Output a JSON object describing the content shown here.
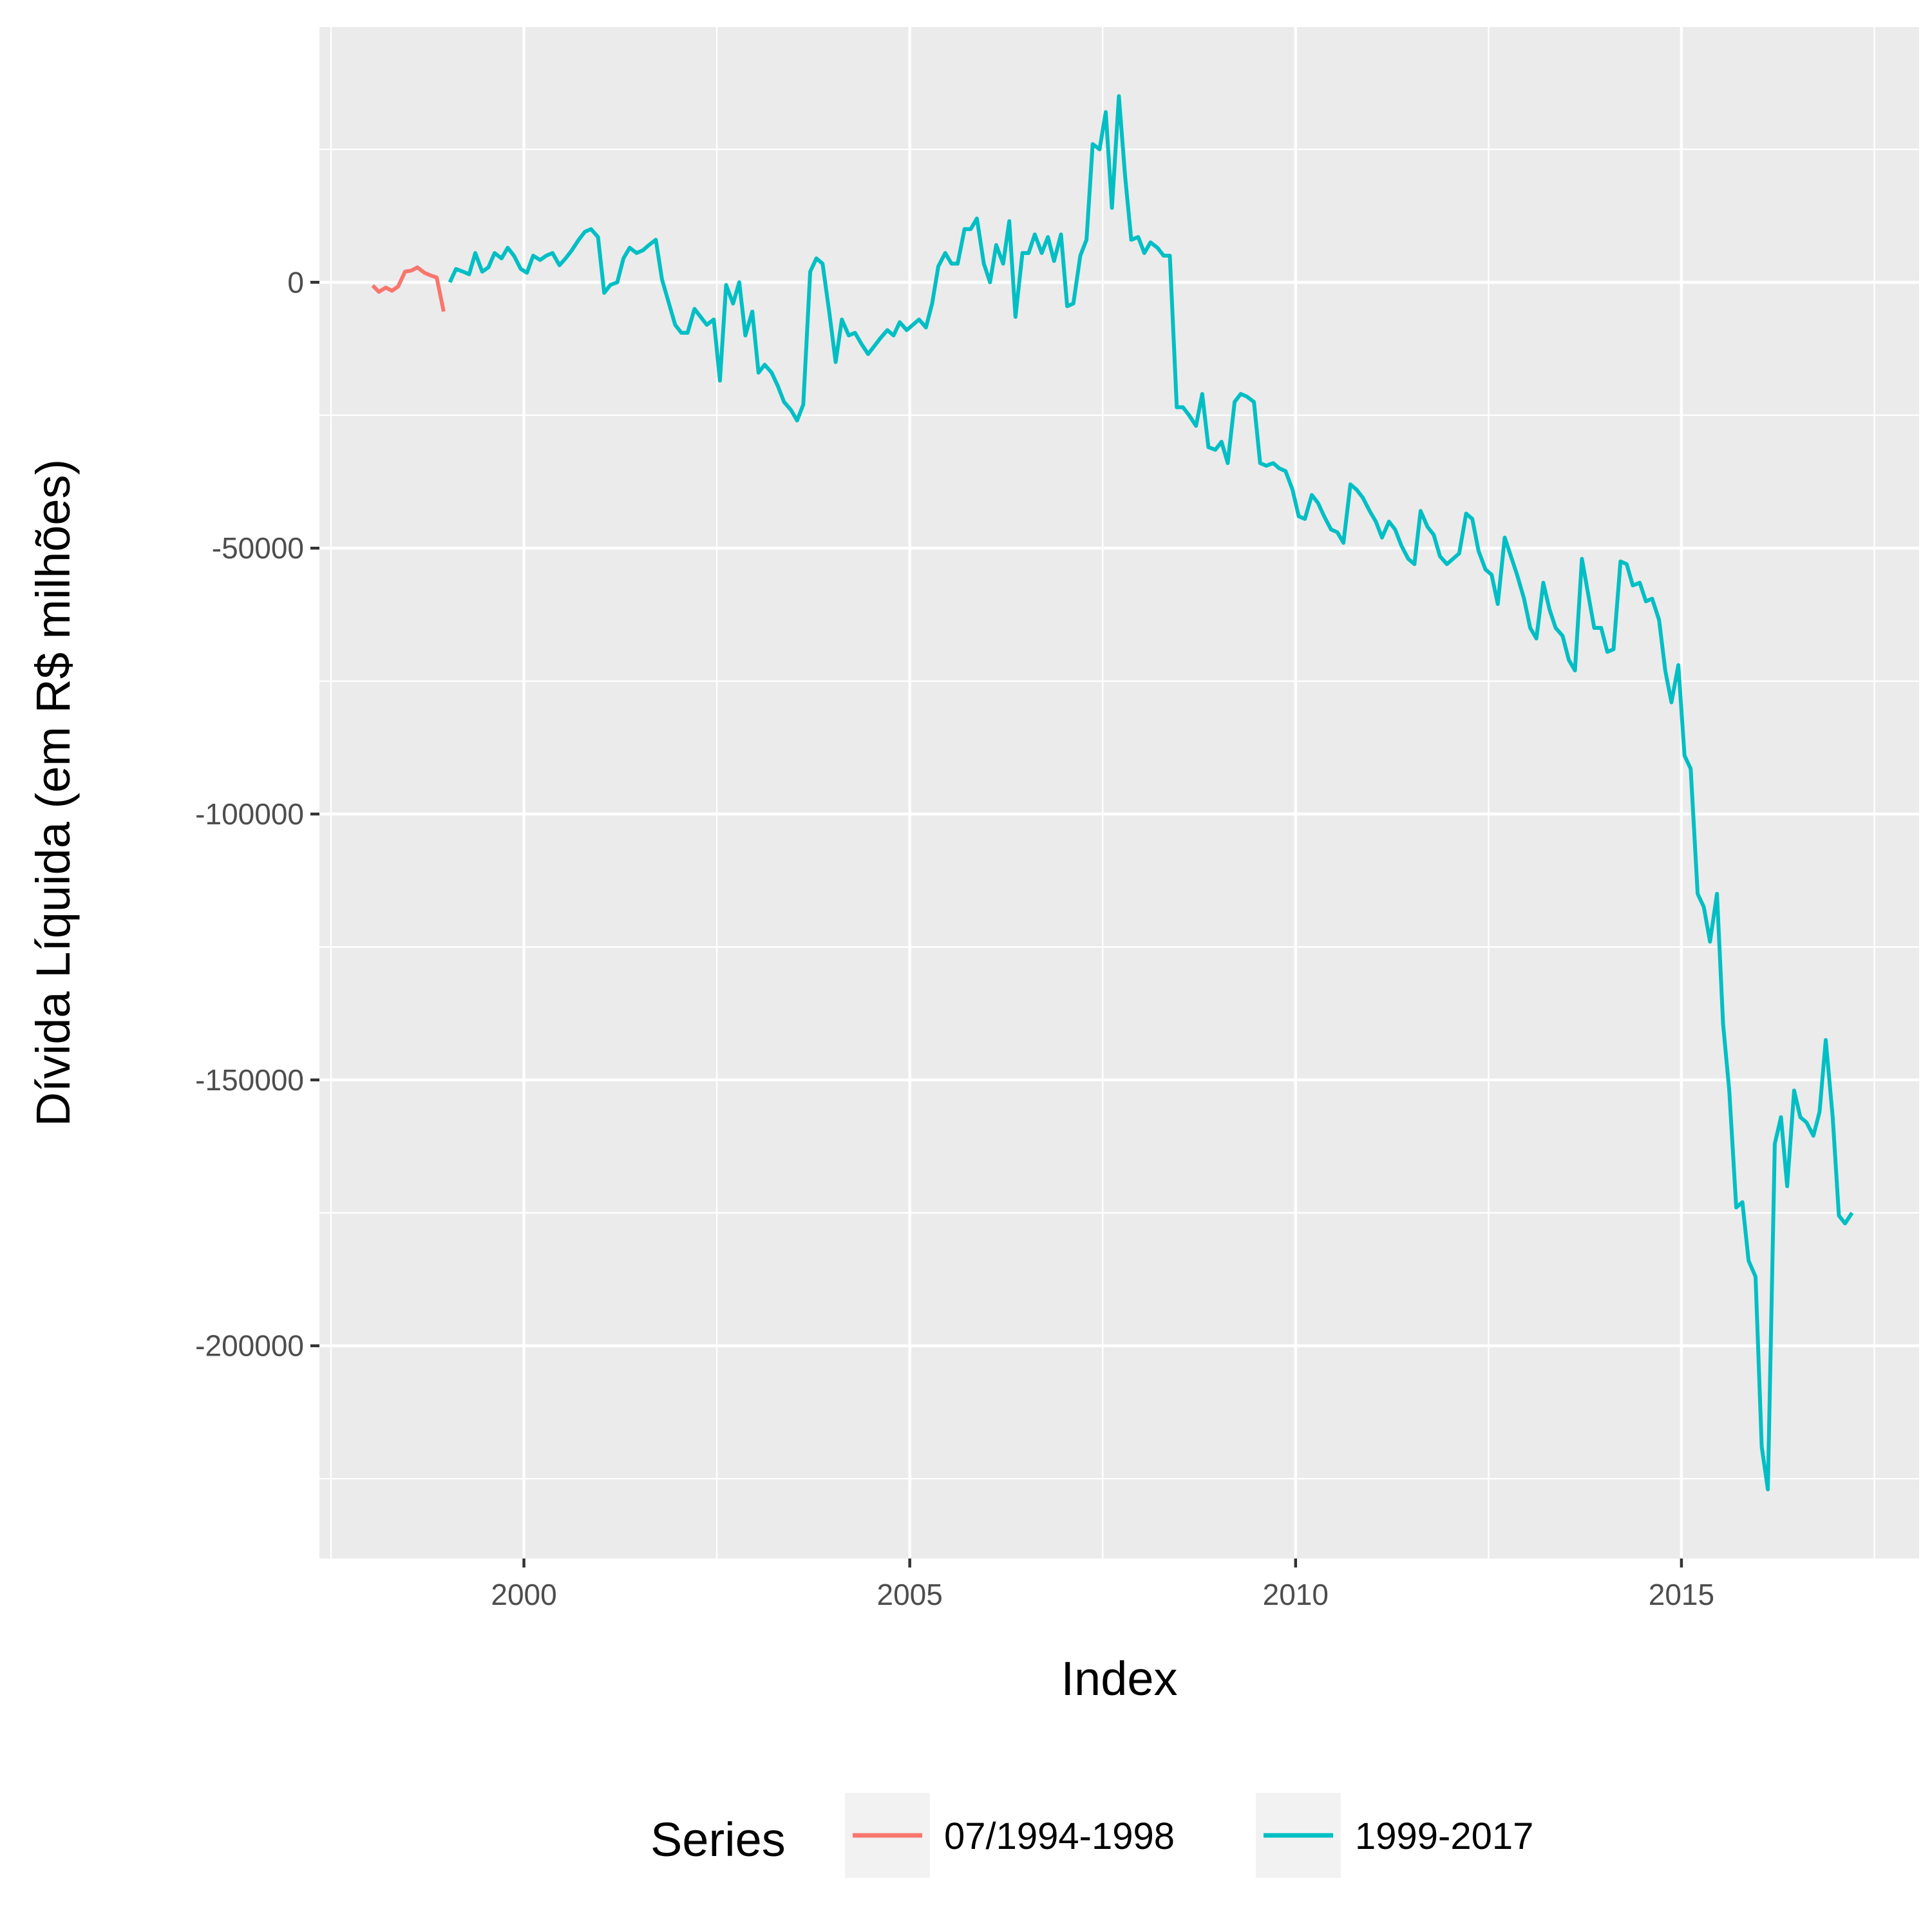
{
  "chart_data": {
    "type": "line",
    "title": "",
    "xlabel": "Index",
    "ylabel": "Dívida Líquida (em R$ milhões)",
    "xlim": [
      1997.35,
      2018.08
    ],
    "ylim": [
      -240000,
      48000
    ],
    "x_ticks": [
      2000,
      2005,
      2010,
      2015
    ],
    "x_tick_labels": [
      "2000",
      "2005",
      "2010",
      "2015"
    ],
    "y_ticks": [
      0,
      -50000,
      -100000,
      -150000,
      -200000
    ],
    "y_tick_labels": [
      "0",
      "-50000",
      "-100000",
      "-150000",
      "-200000"
    ],
    "grid": true,
    "panel_background": "#EBEBEB",
    "legend": {
      "title": "Series",
      "position": "bottom",
      "entries": [
        "07/1994-1998",
        "1999-2017"
      ]
    },
    "series": [
      {
        "name": "07/1994-1998",
        "color": "#F8766D",
        "x": [
          1998.04,
          1998.12,
          1998.21,
          1998.29,
          1998.37,
          1998.46,
          1998.54,
          1998.62,
          1998.71,
          1998.79,
          1998.87,
          1998.96
        ],
        "values": [
          -600,
          -1800,
          -1000,
          -1600,
          -800,
          2000,
          2200,
          2800,
          1800,
          1300,
          900,
          -5500
        ]
      },
      {
        "name": "1999-2017",
        "color": "#00BFC4",
        "x": [
          1999.04,
          1999.12,
          1999.21,
          1999.29,
          1999.37,
          1999.46,
          1999.54,
          1999.62,
          1999.71,
          1999.79,
          1999.87,
          1999.96,
          2000.04,
          2000.12,
          2000.21,
          2000.29,
          2000.37,
          2000.46,
          2000.54,
          2000.62,
          2000.71,
          2000.79,
          2000.87,
          2000.96,
          2001.04,
          2001.12,
          2001.21,
          2001.29,
          2001.37,
          2001.46,
          2001.54,
          2001.62,
          2001.71,
          2001.79,
          2001.87,
          2001.96,
          2002.04,
          2002.12,
          2002.21,
          2002.29,
          2002.37,
          2002.46,
          2002.54,
          2002.62,
          2002.71,
          2002.79,
          2002.87,
          2002.96,
          2003.04,
          2003.12,
          2003.21,
          2003.29,
          2003.37,
          2003.46,
          2003.54,
          2003.62,
          2003.71,
          2003.79,
          2003.87,
          2003.96,
          2004.04,
          2004.12,
          2004.21,
          2004.29,
          2004.37,
          2004.46,
          2004.54,
          2004.62,
          2004.71,
          2004.79,
          2004.87,
          2004.96,
          2005.04,
          2005.12,
          2005.21,
          2005.29,
          2005.37,
          2005.46,
          2005.54,
          2005.62,
          2005.71,
          2005.79,
          2005.87,
          2005.96,
          2006.04,
          2006.12,
          2006.21,
          2006.29,
          2006.37,
          2006.46,
          2006.54,
          2006.62,
          2006.71,
          2006.79,
          2006.87,
          2006.96,
          2007.04,
          2007.12,
          2007.21,
          2007.29,
          2007.37,
          2007.46,
          2007.54,
          2007.62,
          2007.71,
          2007.79,
          2007.87,
          2007.96,
          2008.04,
          2008.12,
          2008.21,
          2008.29,
          2008.37,
          2008.46,
          2008.54,
          2008.62,
          2008.71,
          2008.79,
          2008.87,
          2008.96,
          2009.04,
          2009.12,
          2009.21,
          2009.29,
          2009.37,
          2009.46,
          2009.54,
          2009.62,
          2009.71,
          2009.79,
          2009.87,
          2009.96,
          2010.04,
          2010.12,
          2010.21,
          2010.29,
          2010.37,
          2010.46,
          2010.54,
          2010.62,
          2010.71,
          2010.79,
          2010.87,
          2010.96,
          2011.04,
          2011.12,
          2011.21,
          2011.29,
          2011.37,
          2011.46,
          2011.54,
          2011.62,
          2011.71,
          2011.79,
          2011.87,
          2011.96,
          2012.04,
          2012.12,
          2012.21,
          2012.29,
          2012.37,
          2012.46,
          2012.54,
          2012.62,
          2012.71,
          2012.79,
          2012.87,
          2012.96,
          2013.04,
          2013.12,
          2013.21,
          2013.29,
          2013.37,
          2013.46,
          2013.54,
          2013.62,
          2013.71,
          2013.79,
          2013.87,
          2013.96,
          2014.04,
          2014.12,
          2014.21,
          2014.29,
          2014.37,
          2014.46,
          2014.54,
          2014.62,
          2014.71,
          2014.79,
          2014.87,
          2014.96,
          2015.04,
          2015.12,
          2015.21,
          2015.29,
          2015.37,
          2015.46,
          2015.54,
          2015.62,
          2015.71,
          2015.79,
          2015.87,
          2015.96,
          2016.04,
          2016.12,
          2016.21,
          2016.29,
          2016.37,
          2016.46,
          2016.54,
          2016.62,
          2016.71,
          2016.79,
          2016.87,
          2016.96,
          2017.04,
          2017.12,
          2017.21
        ],
        "values": [
          0,
          2500,
          2000,
          1500,
          5500,
          2000,
          2800,
          5500,
          4500,
          6500,
          5000,
          2500,
          1800,
          5000,
          4200,
          5000,
          5500,
          3200,
          4500,
          6000,
          8000,
          9500,
          10000,
          8500,
          -2000,
          -500,
          0,
          4500,
          6500,
          5500,
          6000,
          7000,
          8000,
          500,
          -3500,
          -8000,
          -9500,
          -9500,
          -5000,
          -6500,
          -8000,
          -7000,
          -18500,
          -500,
          -4000,
          0,
          -10000,
          -5500,
          -17000,
          -15500,
          -17000,
          -19500,
          -22500,
          -24000,
          -26000,
          -23000,
          2000,
          4500,
          3500,
          -6000,
          -15000,
          -7000,
          -10000,
          -9500,
          -11500,
          -13500,
          -12000,
          -10500,
          -9000,
          -10000,
          -7500,
          -9000,
          -8000,
          -7000,
          -8500,
          -4000,
          3000,
          5500,
          3500,
          3500,
          10000,
          10000,
          12000,
          3500,
          0,
          7000,
          3500,
          11500,
          -6500,
          5500,
          5500,
          9000,
          5500,
          8500,
          4000,
          9000,
          -4500,
          -4000,
          5000,
          8000,
          26000,
          25000,
          32000,
          14000,
          35000,
          20000,
          8000,
          8500,
          5500,
          7500,
          6500,
          5000,
          5000,
          -23500,
          -23500,
          -25000,
          -27000,
          -21000,
          -31000,
          -31500,
          -30000,
          -34000,
          -22500,
          -21000,
          -21500,
          -22500,
          -34000,
          -34500,
          -34000,
          -35000,
          -35500,
          -39000,
          -44000,
          -44500,
          -40000,
          -41500,
          -44000,
          -46500,
          -47000,
          -49000,
          -38000,
          -39000,
          -40500,
          -43000,
          -45000,
          -48000,
          -45000,
          -46500,
          -49500,
          -52000,
          -53000,
          -43000,
          -46000,
          -47500,
          -51500,
          -53000,
          -52000,
          -51000,
          -43500,
          -44500,
          -50500,
          -54000,
          -55000,
          -60500,
          -48000,
          -51500,
          -55000,
          -59500,
          -65000,
          -67000,
          -56500,
          -61500,
          -65000,
          -66500,
          -71000,
          -73000,
          -52000,
          -58500,
          -65000,
          -65000,
          -69500,
          -69000,
          -52500,
          -53000,
          -57000,
          -56500,
          -60000,
          -59500,
          -63500,
          -73000,
          -79000,
          -72000,
          -89000,
          -91500,
          -115000,
          -117500,
          -124000,
          -115000,
          -139500,
          -152000,
          -174000,
          -173000,
          -184000,
          -187000,
          -219000,
          -227000,
          -162000,
          -157000,
          -170000,
          -152000,
          -157000,
          -158000,
          -160500,
          -156000,
          -142500,
          -157000,
          -175500,
          -177000,
          -175000
        ]
      }
    ]
  }
}
